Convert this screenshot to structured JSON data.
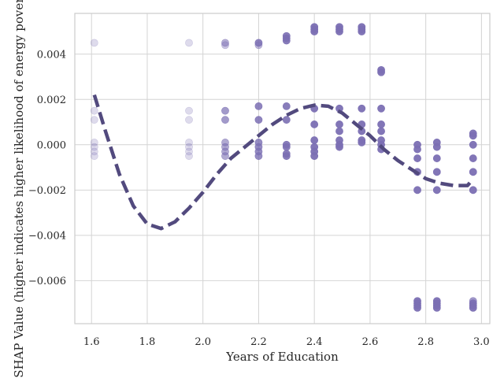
{
  "chart_data": {
    "type": "scatter",
    "xlabel": "Years of Education",
    "ylabel": "SHAP Value (higher indicates higher likelihood of energy poverty)",
    "xlim": [
      1.54,
      3.03
    ],
    "ylim": [
      -0.0079,
      0.0058
    ],
    "x_ticks": [
      1.6,
      1.8,
      2.0,
      2.2,
      2.4,
      2.6,
      2.8,
      3.0
    ],
    "x_tick_labels": [
      "1.6",
      "1.8",
      "2.0",
      "2.2",
      "2.4",
      "2.6",
      "2.8",
      "3.0"
    ],
    "y_ticks": [
      -0.006,
      -0.004,
      -0.002,
      0.0,
      0.002,
      0.004
    ],
    "y_tick_labels": [
      "−0.006",
      "−0.004",
      "−0.002",
      "0.000",
      "0.002",
      "0.004"
    ],
    "grid": true,
    "point_color": "#7b6fb3",
    "trend_color": "#524a7e",
    "points": [
      {
        "x": 1.61,
        "y": 0.0045,
        "alpha": 0.25
      },
      {
        "x": 1.61,
        "y": 0.0015,
        "alpha": 0.25
      },
      {
        "x": 1.61,
        "y": 0.0011,
        "alpha": 0.25
      },
      {
        "x": 1.61,
        "y": 0.0001,
        "alpha": 0.25
      },
      {
        "x": 1.61,
        "y": -0.0001,
        "alpha": 0.25
      },
      {
        "x": 1.61,
        "y": -0.0003,
        "alpha": 0.25
      },
      {
        "x": 1.61,
        "y": -0.0005,
        "alpha": 0.25
      },
      {
        "x": 1.95,
        "y": 0.0045,
        "alpha": 0.25
      },
      {
        "x": 1.95,
        "y": 0.0015,
        "alpha": 0.25
      },
      {
        "x": 1.95,
        "y": 0.0011,
        "alpha": 0.25
      },
      {
        "x": 1.95,
        "y": 0.0001,
        "alpha": 0.25
      },
      {
        "x": 1.95,
        "y": -0.0001,
        "alpha": 0.25
      },
      {
        "x": 1.95,
        "y": -0.0003,
        "alpha": 0.25
      },
      {
        "x": 1.95,
        "y": -0.0005,
        "alpha": 0.25
      },
      {
        "x": 2.08,
        "y": 0.0045,
        "alpha": 0.55
      },
      {
        "x": 2.08,
        "y": 0.0044,
        "alpha": 0.4
      },
      {
        "x": 2.08,
        "y": 0.0015,
        "alpha": 0.7
      },
      {
        "x": 2.08,
        "y": 0.0011,
        "alpha": 0.7
      },
      {
        "x": 2.08,
        "y": 0.0001,
        "alpha": 0.6
      },
      {
        "x": 2.08,
        "y": -0.0001,
        "alpha": 0.6
      },
      {
        "x": 2.08,
        "y": -0.0003,
        "alpha": 0.6
      },
      {
        "x": 2.08,
        "y": -0.0005,
        "alpha": 0.6
      },
      {
        "x": 2.2,
        "y": 0.0045,
        "alpha": 0.85
      },
      {
        "x": 2.2,
        "y": 0.0044,
        "alpha": 0.5
      },
      {
        "x": 2.2,
        "y": 0.0017,
        "alpha": 0.85
      },
      {
        "x": 2.2,
        "y": 0.0011,
        "alpha": 0.85
      },
      {
        "x": 2.2,
        "y": 0.0001,
        "alpha": 0.8
      },
      {
        "x": 2.2,
        "y": -0.0001,
        "alpha": 0.8
      },
      {
        "x": 2.2,
        "y": -0.0003,
        "alpha": 0.8
      },
      {
        "x": 2.2,
        "y": -0.0005,
        "alpha": 0.8
      },
      {
        "x": 2.3,
        "y": 0.0048,
        "alpha": 0.9
      },
      {
        "x": 2.3,
        "y": 0.0047,
        "alpha": 0.9
      },
      {
        "x": 2.3,
        "y": 0.0046,
        "alpha": 0.9
      },
      {
        "x": 2.3,
        "y": 0.0017,
        "alpha": 0.9
      },
      {
        "x": 2.3,
        "y": 0.0011,
        "alpha": 0.9
      },
      {
        "x": 2.3,
        "y": 0.0,
        "alpha": 0.9
      },
      {
        "x": 2.3,
        "y": -0.0001,
        "alpha": 0.9
      },
      {
        "x": 2.3,
        "y": -0.0004,
        "alpha": 0.9
      },
      {
        "x": 2.3,
        "y": -0.0005,
        "alpha": 0.9
      },
      {
        "x": 2.4,
        "y": 0.0052,
        "alpha": 0.95
      },
      {
        "x": 2.4,
        "y": 0.0051,
        "alpha": 0.95
      },
      {
        "x": 2.4,
        "y": 0.005,
        "alpha": 0.95
      },
      {
        "x": 2.4,
        "y": 0.0016,
        "alpha": 0.95
      },
      {
        "x": 2.4,
        "y": 0.0009,
        "alpha": 0.95
      },
      {
        "x": 2.4,
        "y": 0.0002,
        "alpha": 0.95
      },
      {
        "x": 2.4,
        "y": -0.0001,
        "alpha": 0.95
      },
      {
        "x": 2.4,
        "y": -0.0003,
        "alpha": 0.95
      },
      {
        "x": 2.4,
        "y": -0.0005,
        "alpha": 0.95
      },
      {
        "x": 2.49,
        "y": 0.0052,
        "alpha": 0.95
      },
      {
        "x": 2.49,
        "y": 0.0051,
        "alpha": 0.95
      },
      {
        "x": 2.49,
        "y": 0.005,
        "alpha": 0.95
      },
      {
        "x": 2.49,
        "y": 0.0016,
        "alpha": 0.95
      },
      {
        "x": 2.49,
        "y": 0.0009,
        "alpha": 0.95
      },
      {
        "x": 2.49,
        "y": 0.0006,
        "alpha": 0.95
      },
      {
        "x": 2.49,
        "y": 0.0002,
        "alpha": 0.95
      },
      {
        "x": 2.49,
        "y": 0.0,
        "alpha": 0.95
      },
      {
        "x": 2.49,
        "y": -0.0001,
        "alpha": 0.95
      },
      {
        "x": 2.57,
        "y": 0.0052,
        "alpha": 0.95
      },
      {
        "x": 2.57,
        "y": 0.0051,
        "alpha": 0.95
      },
      {
        "x": 2.57,
        "y": 0.005,
        "alpha": 0.95
      },
      {
        "x": 2.57,
        "y": 0.0016,
        "alpha": 0.95
      },
      {
        "x": 2.57,
        "y": 0.0009,
        "alpha": 0.95
      },
      {
        "x": 2.57,
        "y": 0.0006,
        "alpha": 0.95
      },
      {
        "x": 2.57,
        "y": 0.0002,
        "alpha": 0.95
      },
      {
        "x": 2.57,
        "y": 0.0001,
        "alpha": 0.95
      },
      {
        "x": 2.64,
        "y": 0.0033,
        "alpha": 0.95
      },
      {
        "x": 2.64,
        "y": 0.0032,
        "alpha": 0.95
      },
      {
        "x": 2.64,
        "y": 0.0016,
        "alpha": 0.95
      },
      {
        "x": 2.64,
        "y": 0.0009,
        "alpha": 0.95
      },
      {
        "x": 2.64,
        "y": 0.0006,
        "alpha": 0.95
      },
      {
        "x": 2.64,
        "y": 0.0002,
        "alpha": 0.95
      },
      {
        "x": 2.64,
        "y": 0.0,
        "alpha": 0.95
      },
      {
        "x": 2.64,
        "y": -0.0002,
        "alpha": 0.95
      },
      {
        "x": 2.77,
        "y": 0.0,
        "alpha": 0.95
      },
      {
        "x": 2.77,
        "y": -0.0002,
        "alpha": 0.95
      },
      {
        "x": 2.77,
        "y": -0.0006,
        "alpha": 0.95
      },
      {
        "x": 2.77,
        "y": -0.0012,
        "alpha": 0.95
      },
      {
        "x": 2.77,
        "y": -0.002,
        "alpha": 0.95
      },
      {
        "x": 2.77,
        "y": -0.0069,
        "alpha": 0.95
      },
      {
        "x": 2.77,
        "y": -0.007,
        "alpha": 0.95
      },
      {
        "x": 2.77,
        "y": -0.0071,
        "alpha": 0.95
      },
      {
        "x": 2.77,
        "y": -0.0072,
        "alpha": 0.95
      },
      {
        "x": 2.84,
        "y": 0.0001,
        "alpha": 0.95
      },
      {
        "x": 2.84,
        "y": -0.0001,
        "alpha": 0.95
      },
      {
        "x": 2.84,
        "y": -0.0006,
        "alpha": 0.95
      },
      {
        "x": 2.84,
        "y": -0.0012,
        "alpha": 0.95
      },
      {
        "x": 2.84,
        "y": -0.002,
        "alpha": 0.95
      },
      {
        "x": 2.84,
        "y": -0.0069,
        "alpha": 0.95
      },
      {
        "x": 2.84,
        "y": -0.007,
        "alpha": 0.95
      },
      {
        "x": 2.84,
        "y": -0.0071,
        "alpha": 0.95
      },
      {
        "x": 2.84,
        "y": -0.0072,
        "alpha": 0.95
      },
      {
        "x": 2.97,
        "y": 0.0005,
        "alpha": 0.95
      },
      {
        "x": 2.97,
        "y": 0.0004,
        "alpha": 0.95
      },
      {
        "x": 2.97,
        "y": 0.0,
        "alpha": 0.95
      },
      {
        "x": 2.97,
        "y": -0.0006,
        "alpha": 0.95
      },
      {
        "x": 2.97,
        "y": -0.0012,
        "alpha": 0.95
      },
      {
        "x": 2.97,
        "y": -0.002,
        "alpha": 0.95
      },
      {
        "x": 2.97,
        "y": -0.0069,
        "alpha": 0.7
      },
      {
        "x": 2.97,
        "y": -0.007,
        "alpha": 0.95
      },
      {
        "x": 2.97,
        "y": -0.0071,
        "alpha": 0.95
      },
      {
        "x": 2.97,
        "y": -0.0072,
        "alpha": 0.95
      }
    ],
    "trend": {
      "style": "dashed",
      "x": [
        1.61,
        1.65,
        1.7,
        1.75,
        1.8,
        1.85,
        1.9,
        1.95,
        2.0,
        2.05,
        2.1,
        2.15,
        2.2,
        2.25,
        2.3,
        2.35,
        2.4,
        2.45,
        2.5,
        2.55,
        2.6,
        2.65,
        2.7,
        2.75,
        2.8,
        2.85,
        2.9,
        2.95,
        2.97
      ],
      "y": [
        0.0022,
        0.0006,
        -0.0013,
        -0.0027,
        -0.0035,
        -0.0037,
        -0.0034,
        -0.0028,
        -0.0021,
        -0.0013,
        -0.0006,
        -0.0001,
        0.0004,
        0.0009,
        0.0013,
        0.0016,
        0.00175,
        0.0017,
        0.0014,
        0.0009,
        0.0004,
        -0.0002,
        -0.0007,
        -0.0011,
        -0.0015,
        -0.0017,
        -0.0018,
        -0.0018,
        -0.0015
      ]
    }
  }
}
